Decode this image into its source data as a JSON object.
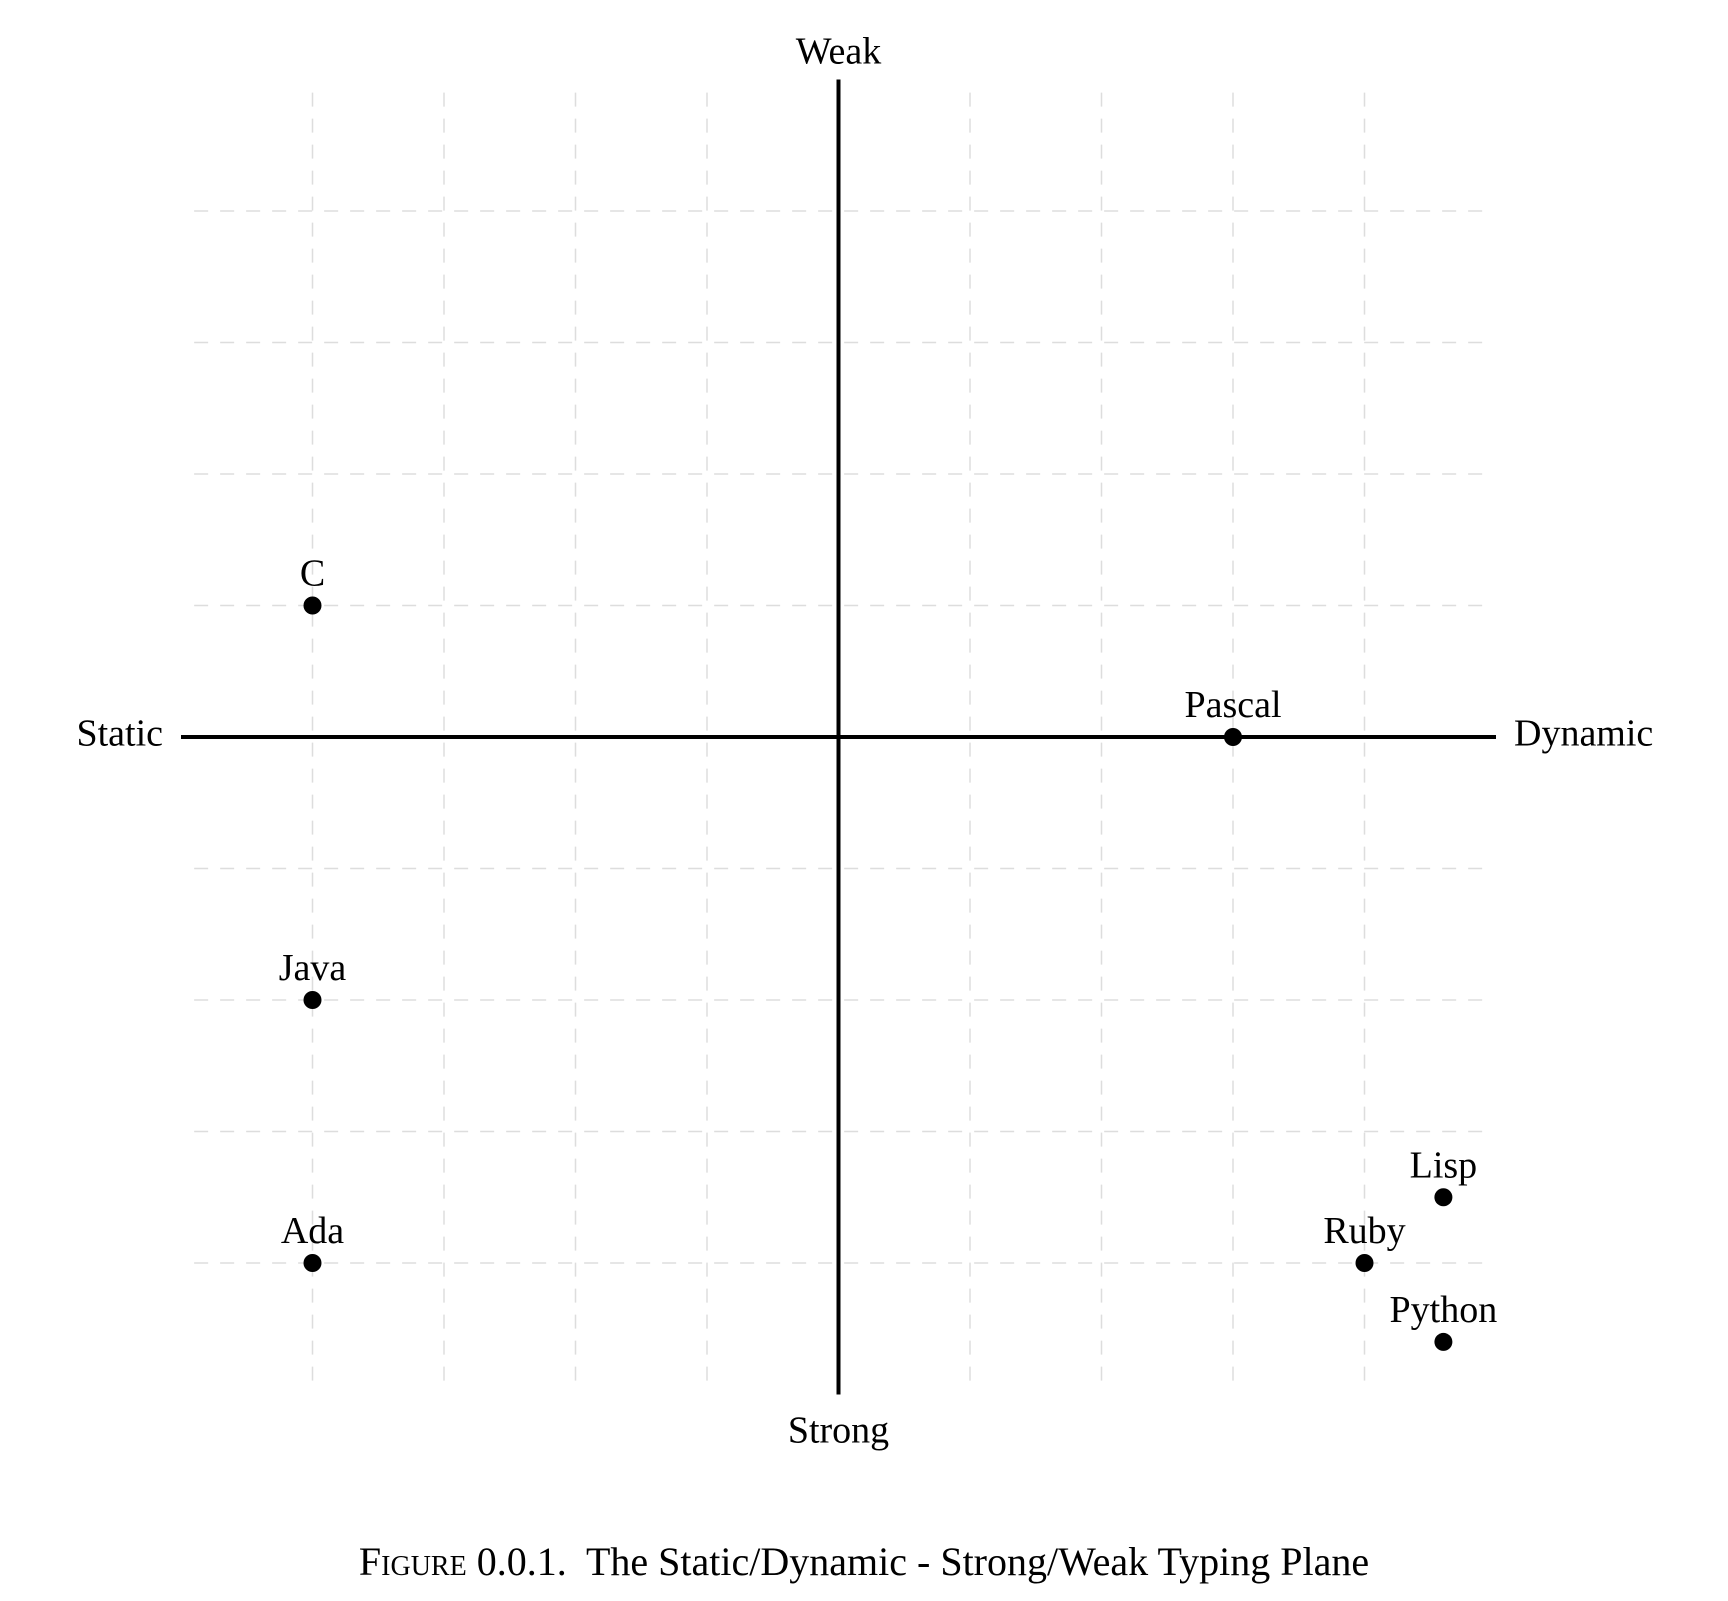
{
  "chart_data": {
    "type": "scatter",
    "title": "",
    "caption_label": "Figure 0.0.1.",
    "caption_text": "The Static/Dynamic - Strong/Weak Typing Plane",
    "axis_labels": {
      "left": "Static",
      "right": "Dynamic",
      "top": "Weak",
      "bottom": "Strong"
    },
    "xlim": [
      -5,
      5
    ],
    "ylim": [
      -5,
      5
    ],
    "grid": true,
    "grid_ticks": [
      -4,
      -3,
      -2,
      -1,
      1,
      2,
      3,
      4
    ],
    "colors": {
      "point": "#000000",
      "axis": "#000000",
      "grid": "#dddddd"
    },
    "points": [
      {
        "label": "C",
        "x": -4,
        "y": 1
      },
      {
        "label": "Pascal",
        "x": 3,
        "y": 0
      },
      {
        "label": "Java",
        "x": -4,
        "y": -2
      },
      {
        "label": "Ada",
        "x": -4,
        "y": -4
      },
      {
        "label": "Lisp",
        "x": 4.6,
        "y": -3.5
      },
      {
        "label": "Ruby",
        "x": 4,
        "y": -4
      },
      {
        "label": "Python",
        "x": 4.6,
        "y": -4.6
      }
    ]
  }
}
